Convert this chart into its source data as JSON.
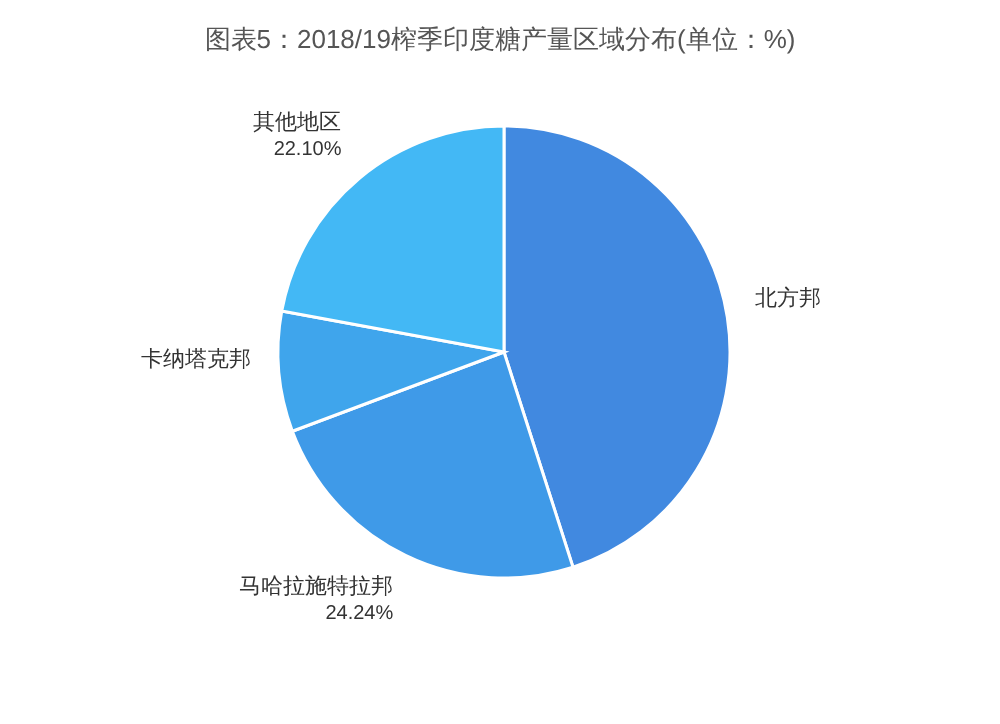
{
  "chart_data": {
    "type": "pie",
    "title": "图表5：2018/19榨季印度糖产量区域分布(单位：%)",
    "categories": [
      "北方邦",
      "马哈拉施特拉邦",
      "卡纳塔克邦",
      "其他地区"
    ],
    "values": [
      45.06,
      24.24,
      8.6,
      22.1
    ],
    "value_labels": [
      null,
      "24.24%",
      null,
      "22.10%"
    ],
    "colors": [
      "#4189e0",
      "#3f9ae8",
      "#3fa5ec",
      "#43b8f5"
    ]
  }
}
